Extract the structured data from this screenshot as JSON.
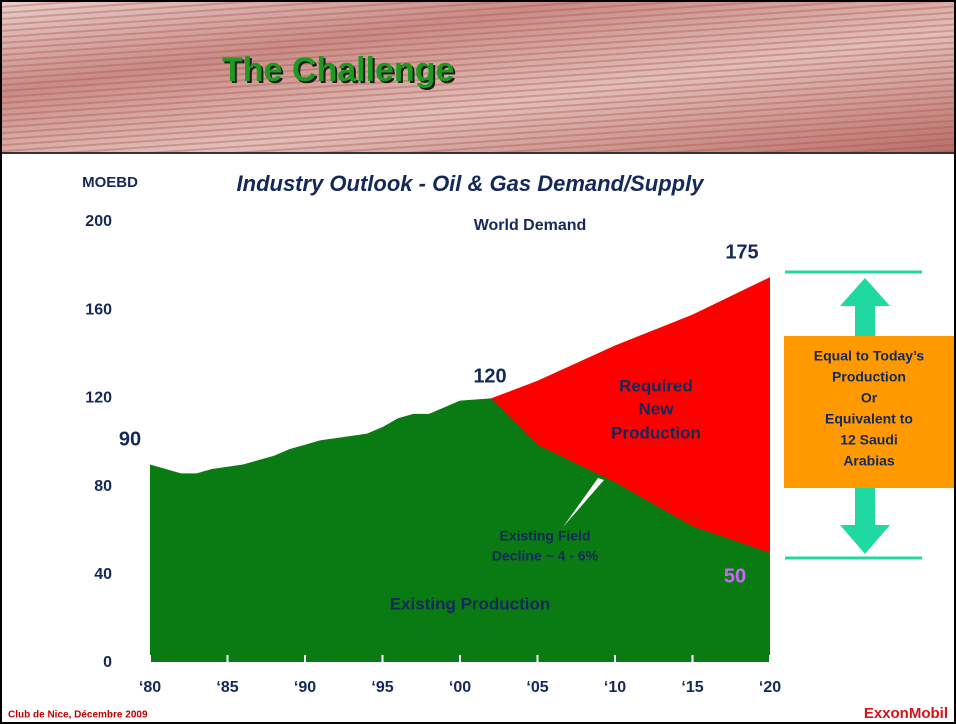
{
  "header": {
    "title": "The Challenge"
  },
  "chart_data": {
    "type": "area",
    "title": "Industry Outlook - Oil & Gas Demand/Supply",
    "y_label": "MOEBD",
    "series": [
      {
        "name": "Existing Production",
        "color": "#0a7a12",
        "x": [
          1980,
          1982,
          1983,
          1984,
          1986,
          1988,
          1989,
          1990,
          1991,
          1992,
          1994,
          1995,
          1996,
          1997,
          1998,
          1999,
          2000,
          2002,
          2005,
          2010,
          2015,
          2020
        ],
        "values": [
          90,
          86,
          86,
          88,
          90,
          94,
          97,
          99,
          101,
          102,
          104,
          107,
          111,
          113,
          113,
          116,
          119,
          120,
          99,
          82,
          62,
          50
        ]
      },
      {
        "name": "World Demand",
        "color": "#ff0000",
        "x": [
          2002,
          2005,
          2010,
          2015,
          2020
        ],
        "values": [
          120,
          128,
          144,
          158,
          175
        ]
      }
    ],
    "annotations": [
      "90",
      "120",
      "175",
      "50",
      "Required",
      "New",
      "Production",
      "Existing Field",
      "Decline ~ 4 - 6%"
    ],
    "callout": [
      "Equal to Today’s",
      "Production",
      "Or",
      "Equivalent to",
      "12 Saudi",
      "Arabias"
    ],
    "xlim": [
      1980,
      2020
    ],
    "xticks": [
      {
        "value": 1980,
        "label": "‘80"
      },
      {
        "value": 1985,
        "label": "‘85"
      },
      {
        "value": 1990,
        "label": "‘90"
      },
      {
        "value": 1995,
        "label": "‘95"
      },
      {
        "value": 2000,
        "label": "‘00"
      },
      {
        "value": 2005,
        "label": "‘05"
      },
      {
        "value": 2010,
        "label": "‘10"
      },
      {
        "value": 2015,
        "label": "‘15"
      },
      {
        "value": 2020,
        "label": "‘20"
      }
    ],
    "ylim": [
      0,
      200
    ],
    "yticks": [
      0,
      40,
      80,
      120,
      160,
      200
    ]
  },
  "footer": {
    "left": "Club de Nice, Décembre 2009",
    "right": "ExxonMobil"
  }
}
